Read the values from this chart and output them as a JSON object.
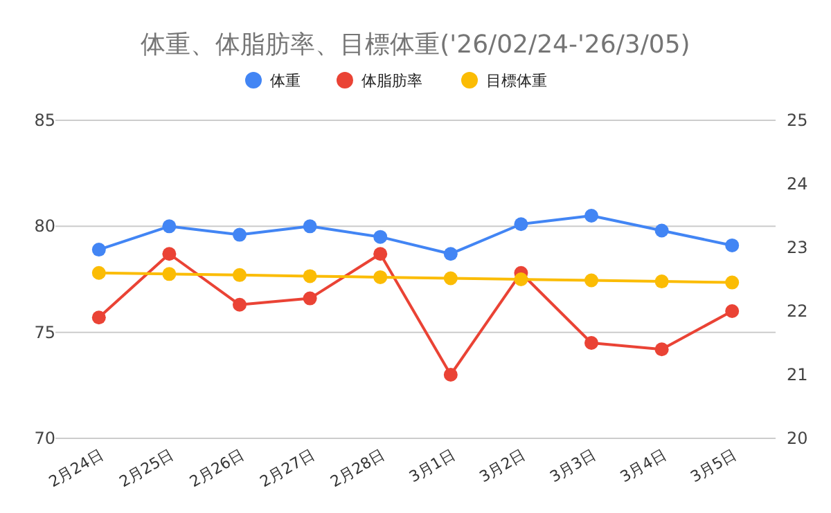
{
  "chart_data": {
    "type": "line",
    "title": "体重、体脂肪率、目標体重('26/02/24-'26/3/05)",
    "categories": [
      "2月24日",
      "2月25日",
      "2月26日",
      "2月27日",
      "2月28日",
      "3月1日",
      "3月2日",
      "3月3日",
      "3月4日",
      "3月5日"
    ],
    "series": [
      {
        "name": "体重",
        "color": "#4285f4",
        "values": [
          78.9,
          80.0,
          79.6,
          80.0,
          79.5,
          78.7,
          80.1,
          80.5,
          79.8,
          79.1
        ]
      },
      {
        "name": "体脂肪率",
        "color": "#ea4335",
        "axis": "y2",
        "values": [
          21.9,
          22.9,
          22.1,
          22.2,
          22.9,
          21.0,
          22.6,
          21.5,
          21.4,
          22.0
        ]
      },
      {
        "name": "目標体重",
        "color": "#fbbc04",
        "values": [
          77.8,
          77.75,
          77.7,
          77.65,
          77.6,
          77.55,
          77.5,
          77.45,
          77.4,
          77.35
        ]
      }
    ],
    "ylim": [
      70,
      85
    ],
    "yticks": [
      70,
      75,
      80,
      85
    ],
    "y2lim": [
      20,
      25
    ],
    "y2ticks": [
      20,
      21,
      22,
      23,
      24,
      25
    ],
    "grid": "y",
    "legend": "top",
    "marker": "circle",
    "line_style": "solid"
  }
}
